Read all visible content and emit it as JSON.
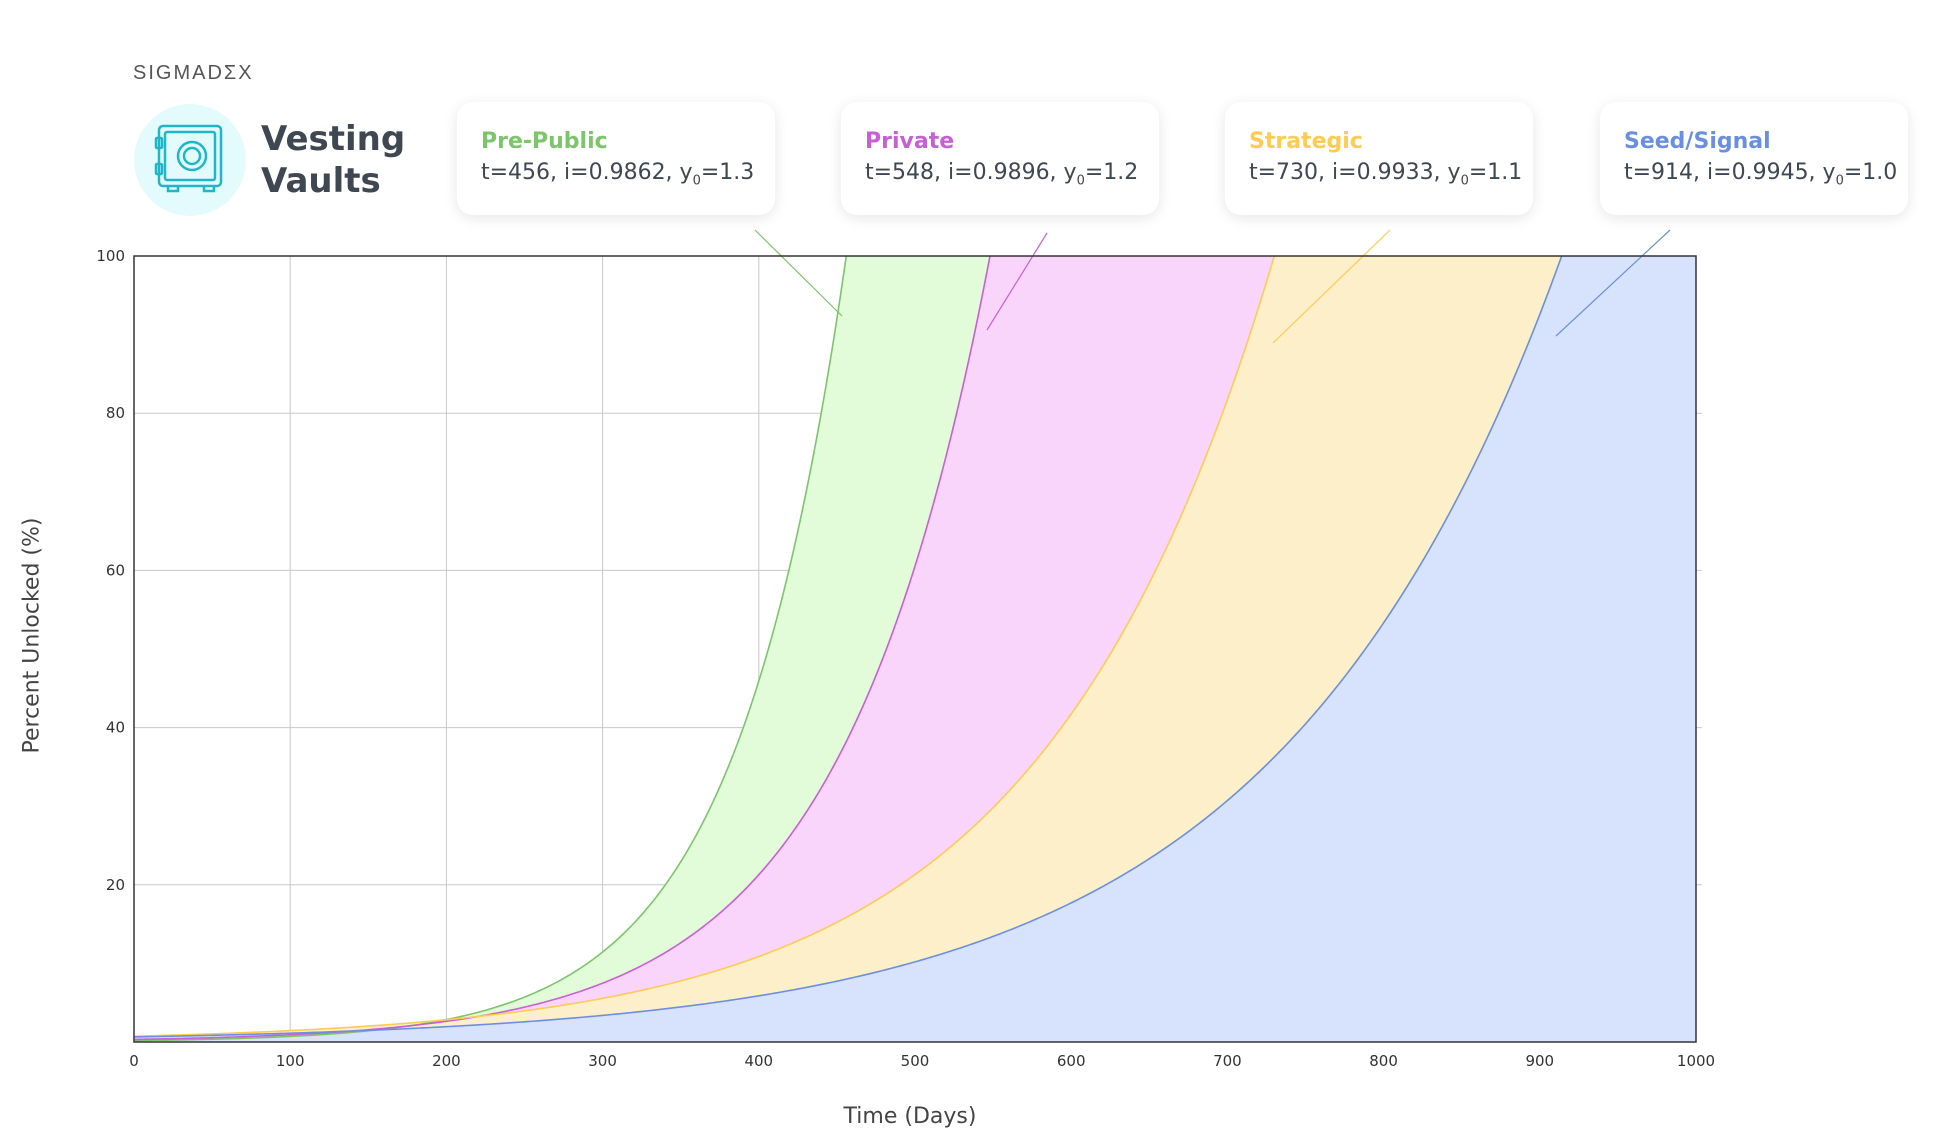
{
  "brand": {
    "prefix": "SIGMADΣ",
    "accent": "",
    "suffix": "X"
  },
  "app_title": "Vesting Vaults",
  "chart_data": {
    "type": "area",
    "title": "",
    "xlabel": "Time (Days)",
    "ylabel": "Percent Unlocked (%)",
    "xlim": [
      0,
      1000
    ],
    "ylim": [
      0,
      100
    ],
    "x_ticks": [
      0,
      100,
      200,
      300,
      400,
      500,
      600,
      700,
      800,
      900,
      1000
    ],
    "y_ticks": [
      20,
      40,
      60,
      80,
      100
    ],
    "grid": true,
    "legend_placement": "top",
    "series": [
      {
        "name": "Pre-Public",
        "params": "t=456, i=0.9862, y",
        "y0": "1.3",
        "t": 456,
        "i": 0.9862,
        "color": "#7cc56a",
        "fill": "#e2fbd9"
      },
      {
        "name": "Private",
        "params": "t=548, i=0.9896, y",
        "y0": "1.2",
        "t": 548,
        "i": 0.9896,
        "color": "#c760d4",
        "fill": "#f9d5fb"
      },
      {
        "name": "Strategic",
        "params": "t=730, i=0.9933, y",
        "y0": "1.1",
        "t": 730,
        "i": 0.9933,
        "color": "#ffcb52",
        "fill": "#fdefc9"
      },
      {
        "name": "Seed/Signal",
        "params": "t=914, i=0.9945, y",
        "y0": "1.0",
        "t": 914,
        "i": 0.9945,
        "color": "#6b8fe0",
        "fill": "#d7e3fd"
      }
    ]
  },
  "colors": {
    "grid": "#c8c8c8",
    "axis": "#333333",
    "tick_text": "#333333"
  }
}
